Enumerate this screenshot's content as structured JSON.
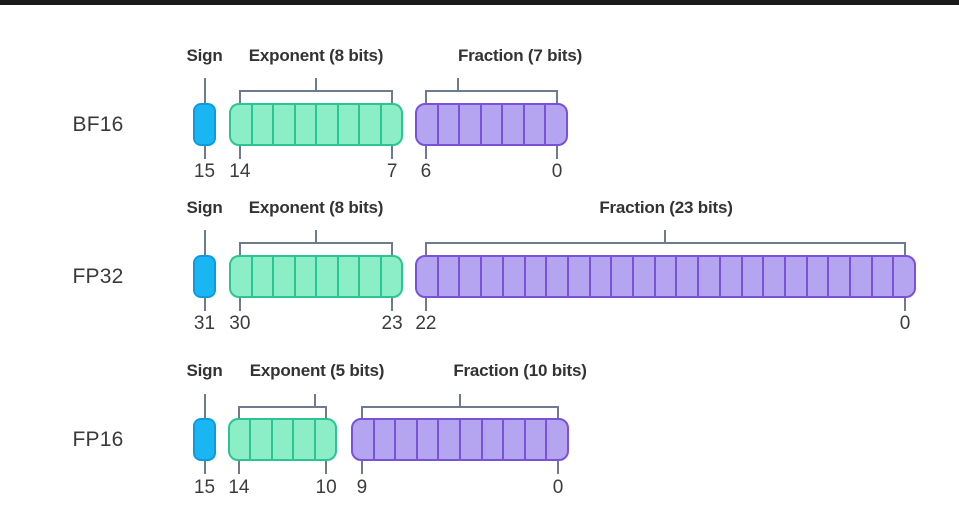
{
  "colors": {
    "background": "#ffffff",
    "top_bar": "#1b1b1b",
    "sign_fill": "#1ab5f3",
    "sign_border": "#0c9be0",
    "exponent_fill": "#8ceec7",
    "exponent_border": "#2bc493",
    "fraction_fill": "#b5a4ef",
    "fraction_border": "#7a52d9",
    "line": "#6e7a8e",
    "label_text": "#333333",
    "number_text": "#3c3c3c",
    "row_text": "#3a3a3a"
  },
  "rows": [
    {
      "name": "BF16",
      "sign": {
        "label": "Sign",
        "bit": "15",
        "bits": 1
      },
      "exponent": {
        "label": "Exponent (8 bits)",
        "bits": 8,
        "msb": "14",
        "lsb": "7"
      },
      "fraction": {
        "label": "Fraction (7 bits)",
        "bits": 7,
        "msb": "6",
        "lsb": "0"
      }
    },
    {
      "name": "FP32",
      "sign": {
        "label": "Sign",
        "bit": "31",
        "bits": 1
      },
      "exponent": {
        "label": "Exponent (8 bits)",
        "bits": 8,
        "msb": "30",
        "lsb": "23"
      },
      "fraction": {
        "label": "Fraction (23 bits)",
        "bits": 23,
        "msb": "22",
        "lsb": "0"
      }
    },
    {
      "name": "FP16",
      "sign": {
        "label": "Sign",
        "bit": "15",
        "bits": 1
      },
      "exponent": {
        "label": "Exponent (5 bits)",
        "bits": 5,
        "msb": "14",
        "lsb": "10"
      },
      "fraction": {
        "label": "Fraction (10 bits)",
        "bits": 10,
        "msb": "9",
        "lsb": "0"
      }
    }
  ]
}
